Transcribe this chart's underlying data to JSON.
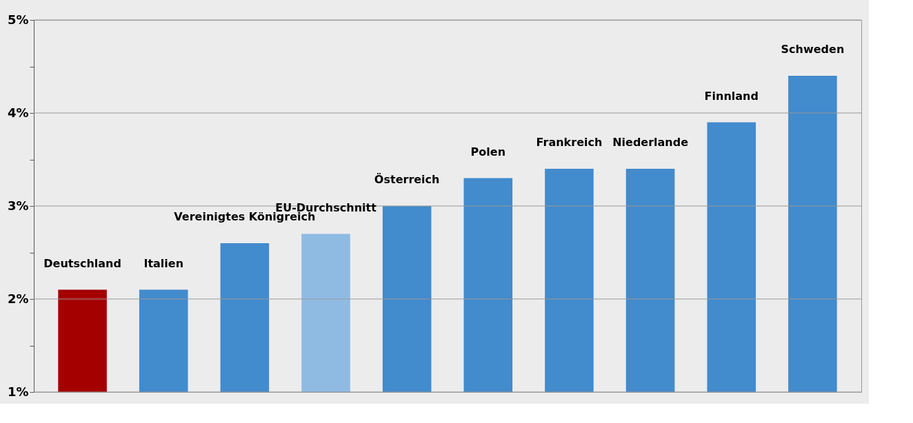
{
  "chart_data": {
    "type": "bar",
    "categories": [
      "Deutschland",
      "Italien",
      "Vereinigtes Königreich",
      "EU-Durchschnitt",
      "Österreich",
      "Polen",
      "Frankreich",
      "Niederlande",
      "Finnland",
      "Schweden"
    ],
    "values": [
      2.1,
      2.1,
      2.6,
      2.7,
      3.0,
      3.3,
      3.4,
      3.4,
      3.9,
      4.4
    ],
    "colors": [
      "#a50000",
      "#428bcd",
      "#428bcd",
      "#8fbbe3",
      "#428bcd",
      "#428bcd",
      "#428bcd",
      "#428bcd",
      "#428bcd",
      "#428bcd"
    ],
    "ylim": [
      1,
      5
    ],
    "yticks": [
      {
        "value": 1,
        "label": "1%"
      },
      {
        "value": 1.5,
        "label": null
      },
      {
        "value": 2,
        "label": "2%"
      },
      {
        "value": 2.5,
        "label": null
      },
      {
        "value": 3,
        "label": "3%"
      },
      {
        "value": 3.5,
        "label": null
      },
      {
        "value": 4,
        "label": "4%"
      },
      {
        "value": 4.5,
        "label": null
      },
      {
        "value": 5,
        "label": "5%"
      }
    ],
    "grid": "y",
    "tick_labels": "y"
  }
}
